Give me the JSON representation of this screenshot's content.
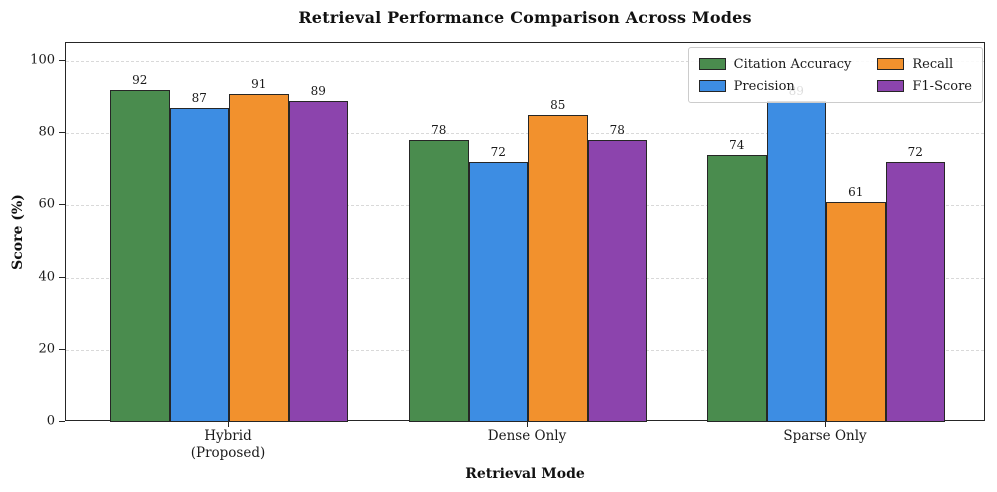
{
  "figure": {
    "background": "#ffffff",
    "frame_color": "#262626",
    "grid_color": "#d9d9d9"
  },
  "chart_data": {
    "type": "bar",
    "title": "Retrieval Performance Comparison Across Modes",
    "xlabel": "Retrieval Mode",
    "ylabel": "Score (%)",
    "categories": [
      "Hybrid\n(Proposed)",
      "Dense Only",
      "Sparse Only"
    ],
    "series": [
      {
        "name": "Citation Accuracy",
        "color": "#4a8c4e",
        "values": [
          92,
          78,
          74
        ]
      },
      {
        "name": "Precision",
        "color": "#3d8de3",
        "values": [
          87,
          72,
          89
        ]
      },
      {
        "name": "Recall",
        "color": "#f2912d",
        "values": [
          91,
          85,
          61
        ]
      },
      {
        "name": "F1-Score",
        "color": "#8c44ad",
        "values": [
          89,
          78,
          72
        ]
      }
    ],
    "ylim": [
      0,
      105
    ],
    "yticks": [
      0,
      20,
      40,
      60,
      80,
      100
    ],
    "grid": "horizontal-dashed",
    "legend_position": "upper-right",
    "legend_columns": 2,
    "bar_edge_color": "#262626",
    "show_value_labels": true
  }
}
